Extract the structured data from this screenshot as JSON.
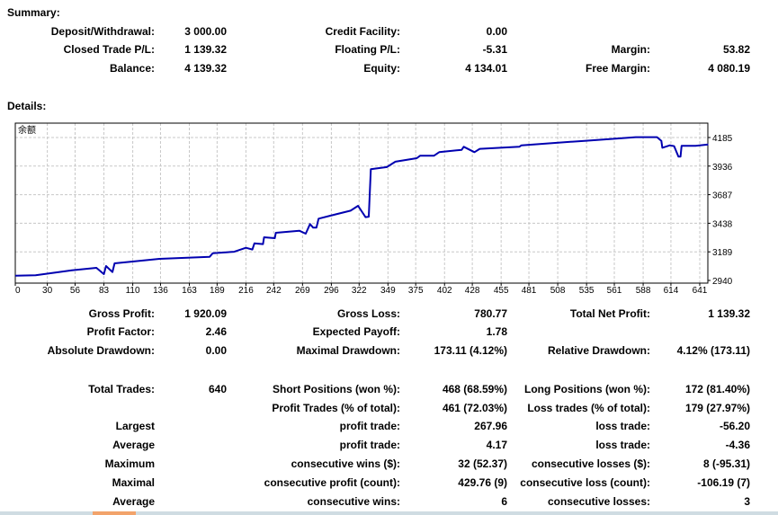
{
  "summary": {
    "title": "Summary:",
    "rows": [
      [
        [
          "Deposit/Withdrawal:",
          "3 000.00"
        ],
        [
          "Credit Facility:",
          "0.00"
        ],
        [
          "",
          ""
        ]
      ],
      [
        [
          "Closed Trade P/L:",
          "1 139.32"
        ],
        [
          "Floating P/L:",
          "-5.31"
        ],
        [
          "Margin:",
          "53.82"
        ]
      ],
      [
        [
          "Balance:",
          "4 139.32"
        ],
        [
          "Equity:",
          "4 134.01"
        ],
        [
          "Free Margin:",
          "4 080.19"
        ]
      ]
    ]
  },
  "details": {
    "title": "Details:",
    "rows": [
      [
        [
          "Gross Profit:",
          "1 920.09"
        ],
        [
          "Gross Loss:",
          "780.77"
        ],
        [
          "Total Net Profit:",
          "1 139.32"
        ]
      ],
      [
        [
          "Profit Factor:",
          "2.46"
        ],
        [
          "Expected Payoff:",
          "1.78"
        ],
        [
          "",
          ""
        ]
      ],
      [
        [
          "Absolute Drawdown:",
          "0.00"
        ],
        [
          "Maximal Drawdown:",
          "173.11 (4.12%)"
        ],
        [
          "Relative Drawdown:",
          "4.12% (173.11)"
        ]
      ],
      [
        [
          "Total Trades:",
          "640"
        ],
        [
          "Short Positions (won %):",
          "468 (68.59%)"
        ],
        [
          "Long Positions (won %):",
          "172 (81.40%)"
        ]
      ],
      [
        [
          "",
          ""
        ],
        [
          "Profit Trades (% of total):",
          "461 (72.03%)"
        ],
        [
          "Loss trades (% of total):",
          "179 (27.97%)"
        ]
      ],
      [
        [
          "Largest",
          ""
        ],
        [
          "profit trade:",
          "267.96"
        ],
        [
          "loss trade:",
          "-56.20"
        ]
      ],
      [
        [
          "Average",
          ""
        ],
        [
          "profit trade:",
          "4.17"
        ],
        [
          "loss trade:",
          "-4.36"
        ]
      ],
      [
        [
          "Maximum",
          ""
        ],
        [
          "consecutive wins ($):",
          "32 (52.37)"
        ],
        [
          "consecutive losses ($):",
          "8 (-95.31)"
        ]
      ],
      [
        [
          "Maximal",
          ""
        ],
        [
          "consecutive profit (count):",
          "429.76 (9)"
        ],
        [
          "consecutive loss (count):",
          "-106.19 (7)"
        ]
      ],
      [
        [
          "Average",
          ""
        ],
        [
          "consecutive wins:",
          "6"
        ],
        [
          "consecutive losses:",
          "3"
        ]
      ]
    ]
  },
  "chart_data": {
    "type": "line",
    "title": "余额",
    "series": [
      {
        "name": "余额",
        "color": "#0000b0",
        "points": [
          [
            0,
            2981
          ],
          [
            19,
            2985
          ],
          [
            53,
            3028
          ],
          [
            76,
            3050
          ],
          [
            83,
            2995
          ],
          [
            85,
            3065
          ],
          [
            91,
            3013
          ],
          [
            93,
            3089
          ],
          [
            135,
            3128
          ],
          [
            182,
            3146
          ],
          [
            185,
            3177
          ],
          [
            205,
            3190
          ],
          [
            216,
            3224
          ],
          [
            222,
            3209
          ],
          [
            224,
            3263
          ],
          [
            232,
            3256
          ],
          [
            233,
            3316
          ],
          [
            243,
            3308
          ],
          [
            244,
            3355
          ],
          [
            266,
            3373
          ],
          [
            272,
            3347
          ],
          [
            276,
            3431
          ],
          [
            279,
            3400
          ],
          [
            282,
            3400
          ],
          [
            284,
            3478
          ],
          [
            295,
            3504
          ],
          [
            314,
            3548
          ],
          [
            321,
            3590
          ],
          [
            328,
            3491
          ],
          [
            331,
            3495
          ],
          [
            333,
            3909
          ],
          [
            348,
            3927
          ],
          [
            356,
            3974
          ],
          [
            376,
            4005
          ],
          [
            379,
            4026
          ],
          [
            392,
            4026
          ],
          [
            397,
            4057
          ],
          [
            418,
            4078
          ],
          [
            420,
            4104
          ],
          [
            430,
            4057
          ],
          [
            435,
            4086
          ],
          [
            472,
            4104
          ],
          [
            474,
            4117
          ],
          [
            533,
            4156
          ],
          [
            561,
            4174
          ],
          [
            581,
            4188
          ],
          [
            601,
            4188
          ],
          [
            605,
            4156
          ],
          [
            606,
            4096
          ],
          [
            613,
            4117
          ],
          [
            617,
            4110
          ],
          [
            621,
            4018
          ],
          [
            623,
            4018
          ],
          [
            624,
            4112
          ],
          [
            637,
            4112
          ],
          [
            649,
            4125
          ]
        ]
      }
    ],
    "x_ticks": [
      0,
      30,
      56,
      83,
      110,
      136,
      163,
      189,
      216,
      242,
      269,
      296,
      322,
      349,
      375,
      402,
      428,
      455,
      481,
      508,
      535,
      561,
      588,
      614,
      641
    ],
    "y_ticks": [
      2940,
      3189,
      3438,
      3687,
      3936,
      4185
    ],
    "xlim": [
      0,
      649
    ],
    "ylim": [
      2940,
      4185
    ],
    "grid": true
  },
  "colors": {
    "line": "#0000b0",
    "grid": "#c8c8c8",
    "accent": "#f2a36b"
  }
}
